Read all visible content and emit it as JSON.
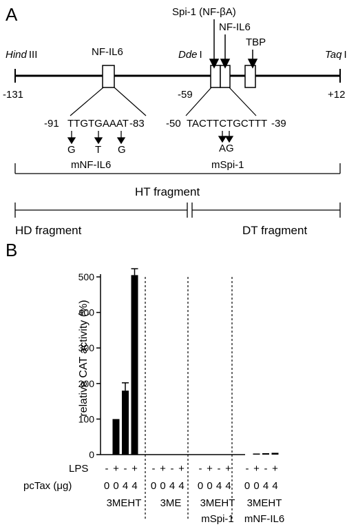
{
  "panel_a": {
    "label": "A",
    "sites": {
      "hind_italic": "Hind",
      "hind_roman": "III",
      "dde_italic": "Dde",
      "dde_roman": "I",
      "taq_italic": "Taq",
      "taq_roman": "I"
    },
    "positions": {
      "start": "-131",
      "dde": "-59",
      "end": "+12"
    },
    "factors": {
      "nfil6_left": "NF-IL6",
      "spi1": "Spi-1 (NF-βA)",
      "nfil6_right": "NF-IL6",
      "tbp": "TBP"
    },
    "left_seq": {
      "start": "-91",
      "seq": "TTGTGAAAT",
      "end": "-83",
      "mutations": [
        "G",
        "T",
        "G"
      ]
    },
    "right_seq": {
      "start": "-50",
      "seq": "TACTTCTGCTTT",
      "end": "-39",
      "mutation": "AG"
    },
    "mutant_labels": {
      "left": "mNF-IL6",
      "right": "mSpi-1"
    },
    "fragments": {
      "ht": "HT fragment",
      "hd": "HD fragment",
      "dt": "DT fragment"
    }
  },
  "panel_b": {
    "label": "B"
  },
  "chart_data": {
    "type": "bar",
    "ylabel": "relative CAT activity (%)",
    "ylim": [
      0,
      500
    ],
    "yticks": [
      "0",
      "100",
      "200",
      "300",
      "400",
      "500"
    ],
    "row_labels": {
      "lps": "LPS",
      "pctax": "pcTax (μg)"
    },
    "groups": [
      {
        "name": "3MEHT",
        "sub": "",
        "lps": [
          "-",
          "+",
          "-",
          "+"
        ],
        "pctax": [
          "0",
          "0",
          "4",
          "4"
        ],
        "values": [
          0,
          100,
          180,
          505
        ],
        "errors": [
          0,
          0,
          22,
          18
        ]
      },
      {
        "name": "3ME",
        "sub": "",
        "lps": [
          "-",
          "+",
          "-",
          "+"
        ],
        "pctax": [
          "0",
          "0",
          "4",
          "4"
        ],
        "values": [
          0,
          0,
          0,
          0
        ],
        "errors": [
          0,
          0,
          0,
          0
        ]
      },
      {
        "name": "3MEHT",
        "sub": "mSpi-1",
        "lps": [
          "-",
          "+",
          "-",
          "+"
        ],
        "pctax": [
          "0",
          "0",
          "4",
          "4"
        ],
        "values": [
          0,
          0,
          0,
          0
        ],
        "errors": [
          0,
          0,
          0,
          0
        ]
      },
      {
        "name": "3MEHT",
        "sub": "mNF-IL6",
        "lps": [
          "-",
          "+",
          "-",
          "+"
        ],
        "pctax": [
          "0",
          "0",
          "4",
          "4"
        ],
        "values": [
          0,
          3,
          4,
          5
        ],
        "errors": [
          0,
          0,
          0,
          0
        ]
      }
    ]
  }
}
